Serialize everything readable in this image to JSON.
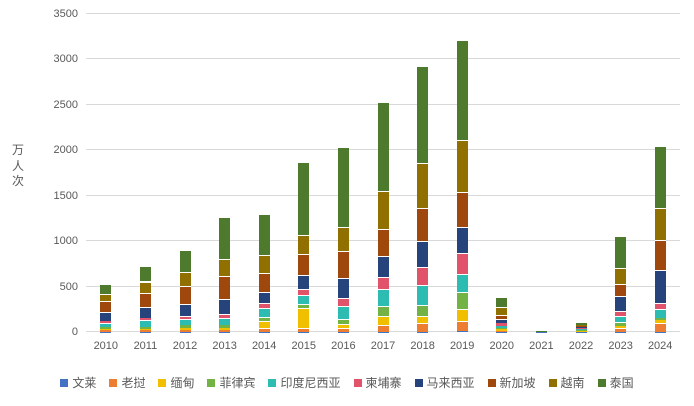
{
  "chart_data": {
    "type": "bar",
    "stacked": true,
    "title": "",
    "ylabel": "万人次",
    "xlabel": "",
    "ylim": [
      0,
      3500
    ],
    "yticks": [
      0,
      500,
      1000,
      1500,
      2000,
      2500,
      3000,
      3500
    ],
    "grid": true,
    "legend_position": "bottom",
    "categories": [
      "2010",
      "2011",
      "2012",
      "2013",
      "2014",
      "2015",
      "2016",
      "2017",
      "2018",
      "2019",
      "2020",
      "2021",
      "2022",
      "2023",
      "2024"
    ],
    "series": [
      {
        "name": "文莱",
        "color": "#4472C4",
        "values": [
          3,
          4,
          4,
          4,
          4,
          4,
          4,
          5,
          5,
          7,
          2,
          0.2,
          0.4,
          2,
          3
        ]
      },
      {
        "name": "老挝",
        "color": "#ED7D31",
        "values": [
          15,
          15,
          18,
          22,
          44,
          44,
          37,
          75,
          92,
          114,
          10,
          1,
          7,
          37,
          96
        ]
      },
      {
        "name": "缅甸",
        "color": "#F0C000",
        "values": [
          20,
          18,
          26,
          22,
          77,
          215,
          44,
          92,
          74,
          129,
          17,
          1,
          5,
          29,
          30
        ]
      },
      {
        "name": "菲律宾",
        "color": "#73B346",
        "values": [
          19,
          23,
          26,
          28,
          44,
          48,
          59,
          111,
          129,
          192,
          17,
          1,
          10,
          37,
          29
        ]
      },
      {
        "name": "印度尼西亚",
        "color": "#2CBCB2",
        "values": [
          45,
          72,
          66,
          81,
          92,
          100,
          147,
          190,
          221,
          195,
          25,
          1,
          12,
          66,
          90
        ]
      },
      {
        "name": "柬埔寨",
        "color": "#E0536A",
        "values": [
          22,
          25,
          37,
          46,
          55,
          63,
          88,
          129,
          190,
          232,
          30,
          2,
          8,
          56,
          74
        ]
      },
      {
        "name": "马来西亚",
        "color": "#26437C",
        "values": [
          100,
          120,
          129,
          158,
          129,
          158,
          215,
          239,
          296,
          291,
          37,
          1,
          9,
          170,
          360
        ]
      },
      {
        "name": "新加坡",
        "color": "#9E480E",
        "values": [
          114,
          152,
          203,
          258,
          203,
          232,
          302,
          295,
          360,
          383,
          44,
          1,
          12,
          132,
          332
        ]
      },
      {
        "name": "越南",
        "color": "#8F7000",
        "values": [
          81,
          127,
          155,
          184,
          203,
          199,
          258,
          412,
          491,
          575,
          92,
          1,
          10,
          174,
          350
        ]
      },
      {
        "name": "泰国",
        "color": "#4E7A2D",
        "values": [
          113,
          170,
          240,
          460,
          453,
          804,
          878,
          980,
          1065,
          1098,
          110,
          4,
          27,
          350,
          681
        ]
      }
    ]
  }
}
